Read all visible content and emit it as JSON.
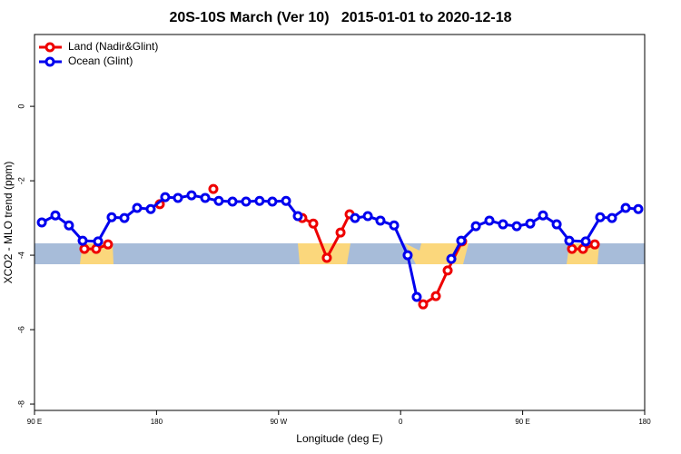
{
  "chart_data": {
    "type": "line",
    "title": "20S-10S March (Ver 10)   2015-01-01 to 2020-12-18",
    "x_label": "Longitude (deg E)",
    "y_label": "XCO2 - MLO trend (ppm)",
    "xlim": [
      90,
      540
    ],
    "xticks": [
      {
        "value": 90,
        "label": "90 E"
      },
      {
        "value": 180,
        "label": "180"
      },
      {
        "value": 270,
        "label": "90 W"
      },
      {
        "value": 360,
        "label": "0"
      },
      {
        "value": 450,
        "label": "90 E"
      },
      {
        "value": 540,
        "label": "180"
      }
    ],
    "ylim": [
      -8.17,
      1.93
    ],
    "yticks": [
      0,
      -2,
      -4,
      -6,
      -8
    ],
    "legend": "top-left",
    "series": [
      {
        "name": "Land (Nadir&Glint)",
        "color": "#ee0000",
        "x": [
          126.8,
          135.5,
          144.2,
          null,
          182.4,
          null,
          221.9,
          null,
          287.5,
          295.6,
          305.6,
          315.7,
          322.4,
          null,
          376.6,
          386,
          394.7,
          405.4,
          null,
          486.4,
          494.5,
          503.2
        ],
        "values": [
          -3.83,
          -3.83,
          -3.71,
          null,
          -2.63,
          null,
          -2.22,
          null,
          -3.0,
          -3.15,
          -4.07,
          -3.39,
          -2.9,
          null,
          -5.32,
          -5.1,
          -4.41,
          -3.63,
          null,
          -3.83,
          -3.83,
          -3.71
        ]
      },
      {
        "name": "Ocean (Glint)",
        "color": "#0000ee",
        "x": [
          95.4,
          105.4,
          115.4,
          125.5,
          136.9,
          146.9,
          156.3,
          165.7,
          175.7,
          186.4,
          195.8,
          205.8,
          215.9,
          225.9,
          236,
          246,
          256,
          265.4,
          275.5,
          284.2,
          null,
          326.4,
          335.8,
          345.1,
          355.2,
          365.2,
          371.9,
          null,
          397.4,
          404.7,
          415.5,
          425.5,
          435.5,
          445.6,
          455.6,
          465,
          475.1,
          484.4,
          496.5,
          507.2,
          515.9,
          526,
          535.3
        ],
        "values": [
          -3.12,
          -2.93,
          -3.2,
          -3.61,
          -3.63,
          -2.98,
          -3.0,
          -2.73,
          -2.76,
          -2.44,
          -2.46,
          -2.39,
          -2.46,
          -2.54,
          -2.56,
          -2.56,
          -2.54,
          -2.56,
          -2.54,
          -2.95,
          null,
          -3.0,
          -2.95,
          -3.07,
          -3.2,
          -4.0,
          -5.12,
          null,
          -4.1,
          -3.61,
          -3.22,
          -3.07,
          -3.17,
          -3.22,
          -3.15,
          -2.93,
          -3.17,
          -3.61,
          -3.63,
          -2.98,
          -3.0,
          -2.73,
          -2.76
        ]
      }
    ]
  }
}
